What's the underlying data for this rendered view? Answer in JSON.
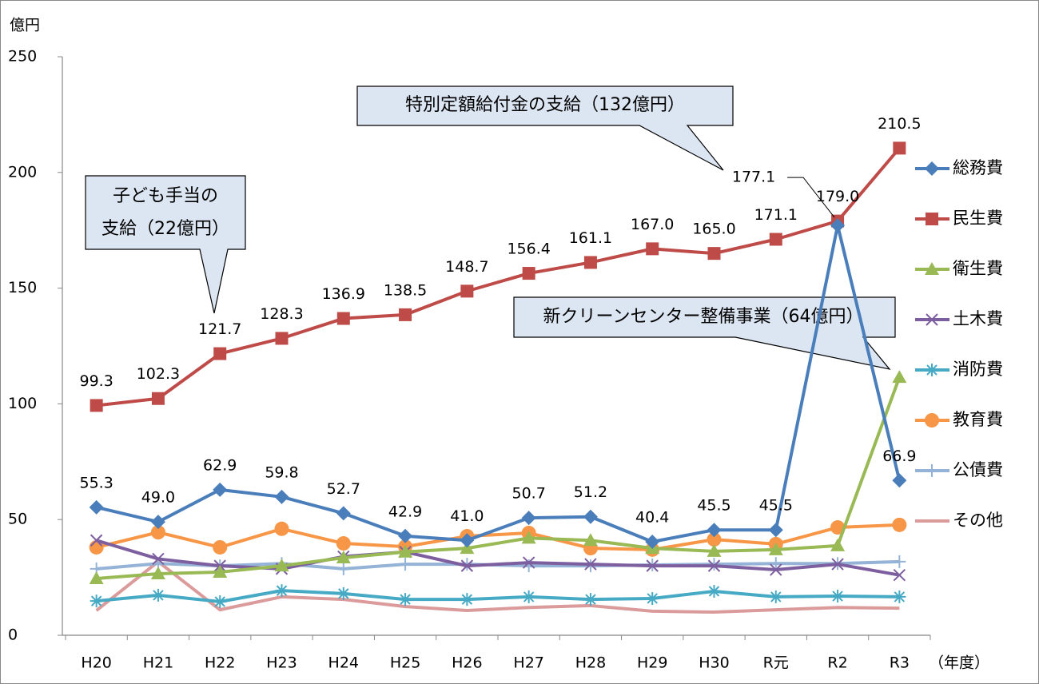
{
  "chart_data": {
    "type": "line",
    "y_unit_label": "億円",
    "x_unit_label": "（年度）",
    "categories": [
      "H20",
      "H21",
      "H22",
      "H23",
      "H24",
      "H25",
      "H26",
      "H27",
      "H28",
      "H29",
      "H30",
      "R元",
      "R2",
      "R3"
    ],
    "ylim": [
      0,
      250
    ],
    "yticks": [
      0,
      50,
      100,
      150,
      200,
      250
    ],
    "legend": "right",
    "series": [
      {
        "name": "総務費",
        "color": "#4a7ebb",
        "marker": "diamond",
        "values": [
          55.3,
          49.0,
          62.9,
          59.8,
          52.7,
          42.9,
          41.0,
          50.7,
          51.2,
          40.4,
          45.5,
          45.5,
          177.1,
          66.9
        ],
        "value_labels": [
          "55.3",
          "49.0",
          "62.9",
          "59.8",
          "52.7",
          "42.9",
          "41.0",
          "50.7",
          "51.2",
          "40.4",
          "45.5",
          "45.5",
          "177.1",
          "66.9"
        ]
      },
      {
        "name": "民生費",
        "color": "#be4b48",
        "marker": "square",
        "values": [
          99.3,
          102.3,
          121.7,
          128.3,
          136.9,
          138.5,
          148.7,
          156.4,
          161.1,
          167.0,
          165.0,
          171.1,
          179.0,
          210.5
        ],
        "value_labels": [
          "99.3",
          "102.3",
          "121.7",
          "128.3",
          "136.9",
          "138.5",
          "148.7",
          "156.4",
          "161.1",
          "167.0",
          "165.0",
          "171.1",
          "179.0",
          "210.5"
        ]
      },
      {
        "name": "衛生費",
        "color": "#98b954",
        "marker": "triangle",
        "values": [
          24.5,
          26.6,
          27.3,
          30,
          33.5,
          36,
          37.6,
          42,
          41,
          37.6,
          36.3,
          37,
          38.7,
          111.5
        ]
      },
      {
        "name": "土木費",
        "color": "#7d5fa0",
        "marker": "x",
        "values": [
          41,
          33,
          30,
          28.7,
          34,
          36,
          30,
          31.4,
          30.7,
          30,
          30,
          28.3,
          30.7,
          26
        ]
      },
      {
        "name": "消防費",
        "color": "#46aac5",
        "marker": "star",
        "values": [
          14.8,
          17.3,
          14.5,
          19.3,
          18,
          15.5,
          15.5,
          16.6,
          15.5,
          15.9,
          19,
          16.6,
          16.9,
          16.6
        ]
      },
      {
        "name": "教育費",
        "color": "#f79646",
        "marker": "circle",
        "values": [
          38,
          44.5,
          38,
          46,
          39.7,
          38.3,
          42.8,
          44.2,
          37.6,
          37,
          41.4,
          39.4,
          46.6,
          47.7
        ]
      },
      {
        "name": "公債費",
        "color": "#94b3d6",
        "marker": "plus",
        "values": [
          28.7,
          31,
          30,
          31,
          28.7,
          30.7,
          30.7,
          30,
          30,
          30.4,
          30.7,
          31,
          31,
          31.8
        ]
      },
      {
        "name": "その他",
        "color": "#db9b9b",
        "marker": "none",
        "values": [
          10.7,
          31.8,
          11,
          16.6,
          15.5,
          12.4,
          10.7,
          12,
          12.8,
          10.4,
          10,
          11,
          12,
          11.7
        ]
      }
    ],
    "annotations": [
      {
        "lines": [
          "子ども手当の",
          "支給（22億円）"
        ]
      },
      {
        "lines": [
          "特別定額給付金の支給（132億円）"
        ]
      },
      {
        "lines": [
          "新クリーンセンター整備事業（64億円）"
        ]
      }
    ]
  }
}
